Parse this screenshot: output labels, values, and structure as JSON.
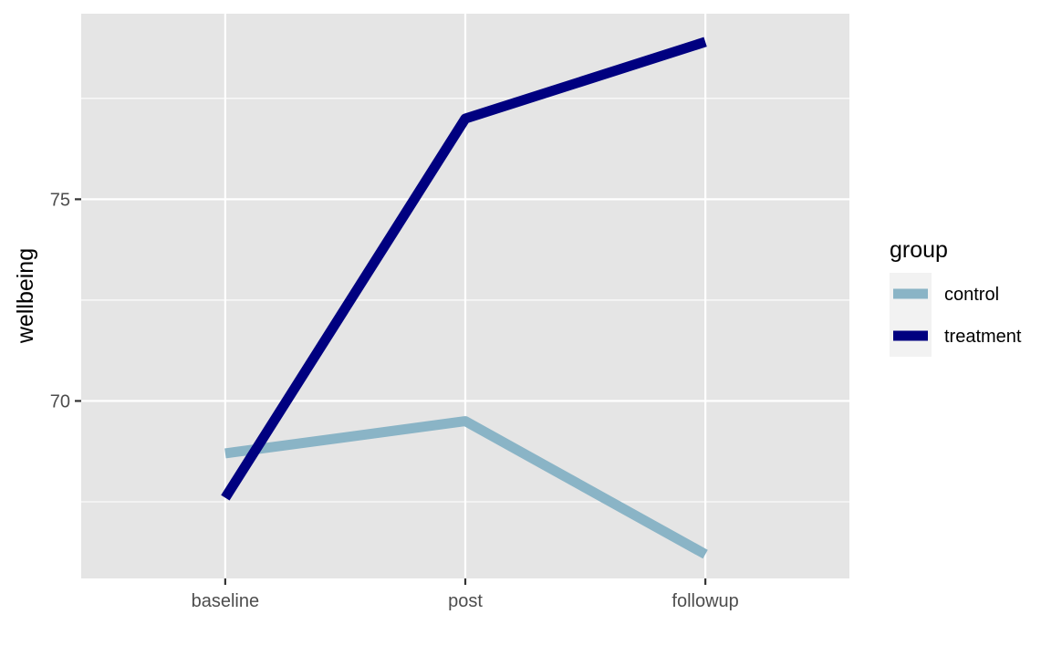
{
  "chart_data": {
    "type": "line",
    "categories": [
      "baseline",
      "post",
      "followup"
    ],
    "ylabel": "wellbeing",
    "xlabel": "",
    "ylim": [
      65.6,
      79.6
    ],
    "y_ticks": [
      70,
      75
    ],
    "y_minor_ticks": [
      67.5,
      72.5,
      77.5
    ],
    "grid": true,
    "legend": {
      "title": "group",
      "position": "right"
    },
    "series": [
      {
        "name": "control",
        "color": "#8ab4c6",
        "values": [
          68.7,
          69.5,
          66.2
        ]
      },
      {
        "name": "treatment",
        "color": "#000080",
        "values": [
          67.6,
          77.0,
          78.9
        ]
      }
    ],
    "panel_background": "#e5e5e5",
    "grid_color": "#ffffff"
  }
}
